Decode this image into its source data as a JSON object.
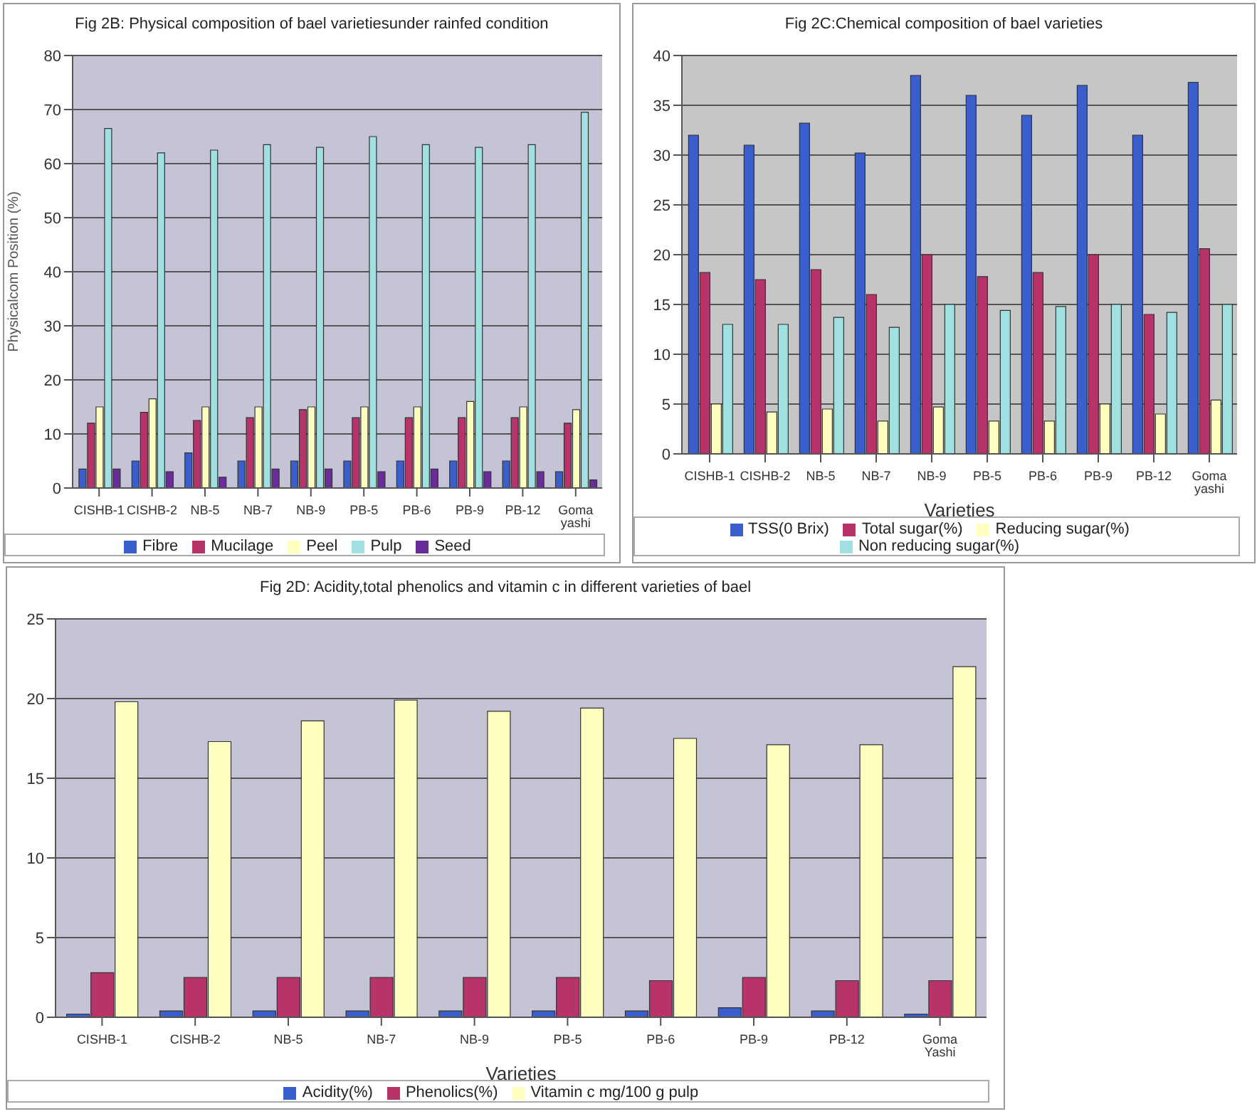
{
  "chart_data": [
    {
      "type": "bar",
      "title": "Fig 2B: Physical composition of bael varietiesunder rainfed condition",
      "ylabel": "Physicalcom Position (%)",
      "categories": [
        "CISHB-1",
        "CISHB-2",
        "NB-5",
        "NB-7",
        "NB-9",
        "PB-5",
        "PB-6",
        "PB-9",
        "PB-12",
        "Goma yashi"
      ],
      "series": [
        {
          "name": "Fibre",
          "color": "#3a5fcd",
          "values": [
            3.5,
            5,
            6.5,
            5,
            5,
            5,
            5,
            5,
            5,
            3
          ]
        },
        {
          "name": "Mucilage",
          "color": "#b8336a",
          "values": [
            12,
            14,
            12.5,
            13,
            14.5,
            13,
            13,
            13,
            13,
            12
          ]
        },
        {
          "name": "Peel",
          "color": "#ffffc0",
          "values": [
            15,
            16.5,
            15,
            15,
            15,
            15,
            15,
            16,
            15,
            14.5
          ]
        },
        {
          "name": "Pulp",
          "color": "#a0e0e0",
          "values": [
            66.5,
            62,
            62.5,
            63.5,
            63,
            65,
            63.5,
            63,
            63.5,
            69.5
          ]
        },
        {
          "name": "Seed",
          "color": "#6a2c9a",
          "values": [
            3.5,
            3,
            2,
            3.5,
            3.5,
            3,
            3.5,
            3,
            3,
            1.5
          ]
        }
      ],
      "ylim": [
        0,
        80
      ],
      "yticks": [
        0,
        10,
        20,
        30,
        40,
        50,
        60,
        70,
        80
      ],
      "grid": "y",
      "legend": "bottom"
    },
    {
      "type": "bar",
      "title": "Fig 2C:Chemical composition of bael varieties",
      "xlabel": "Varieties",
      "categories": [
        "CISHB-1",
        "CISHB-2",
        "NB-5",
        "NB-7",
        "NB-9",
        "PB-5",
        "PB-6",
        "PB-9",
        "PB-12",
        "Goma yashi"
      ],
      "series": [
        {
          "name": "TSS(0 Brix)",
          "color": "#3a5fcd",
          "values": [
            32,
            31,
            33.2,
            30.2,
            38,
            36,
            34,
            37,
            32,
            37.3
          ]
        },
        {
          "name": "Total sugar(%)",
          "color": "#b8336a",
          "values": [
            18.2,
            17.5,
            18.5,
            16,
            20,
            17.8,
            18.2,
            20,
            14,
            20.6
          ]
        },
        {
          "name": "Reducing sugar(%)",
          "color": "#ffffc0",
          "values": [
            5,
            4.2,
            4.5,
            3.3,
            4.7,
            3.3,
            3.3,
            5,
            4,
            5.4
          ]
        },
        {
          "name": "Non reducing sugar(%)",
          "color": "#a0e0e0",
          "values": [
            13,
            13,
            13.7,
            12.7,
            15,
            14.4,
            14.8,
            15,
            14.2,
            15
          ]
        }
      ],
      "ylim": [
        0,
        40
      ],
      "yticks": [
        0,
        5,
        10,
        15,
        20,
        25,
        30,
        35,
        40
      ],
      "grid": "y",
      "legend": "bottom"
    },
    {
      "type": "bar",
      "title": "Fig 2D: Acidity,total phenolics and vitamin c in different varieties of bael",
      "xlabel": "Varieties",
      "categories": [
        "CISHB-1",
        "CISHB-2",
        "NB-5",
        "NB-7",
        "NB-9",
        "PB-5",
        "PB-6",
        "PB-9",
        "PB-12",
        "Goma Yashi"
      ],
      "series": [
        {
          "name": "Acidity(%)",
          "color": "#3a5fcd",
          "values": [
            0.2,
            0.4,
            0.4,
            0.4,
            0.4,
            0.4,
            0.4,
            0.6,
            0.4,
            0.2
          ]
        },
        {
          "name": "Phenolics(%)",
          "color": "#b8336a",
          "values": [
            2.8,
            2.5,
            2.5,
            2.5,
            2.5,
            2.5,
            2.3,
            2.5,
            2.3,
            2.3
          ]
        },
        {
          "name": "Vitamin c mg/100 g pulp",
          "color": "#ffffc0",
          "values": [
            19.8,
            17.3,
            18.6,
            19.9,
            19.2,
            19.4,
            17.5,
            17.1,
            17.1,
            22
          ]
        }
      ],
      "ylim": [
        0,
        25
      ],
      "yticks": [
        0,
        5,
        10,
        15,
        20,
        25
      ],
      "grid": "y",
      "legend": "bottom"
    }
  ]
}
